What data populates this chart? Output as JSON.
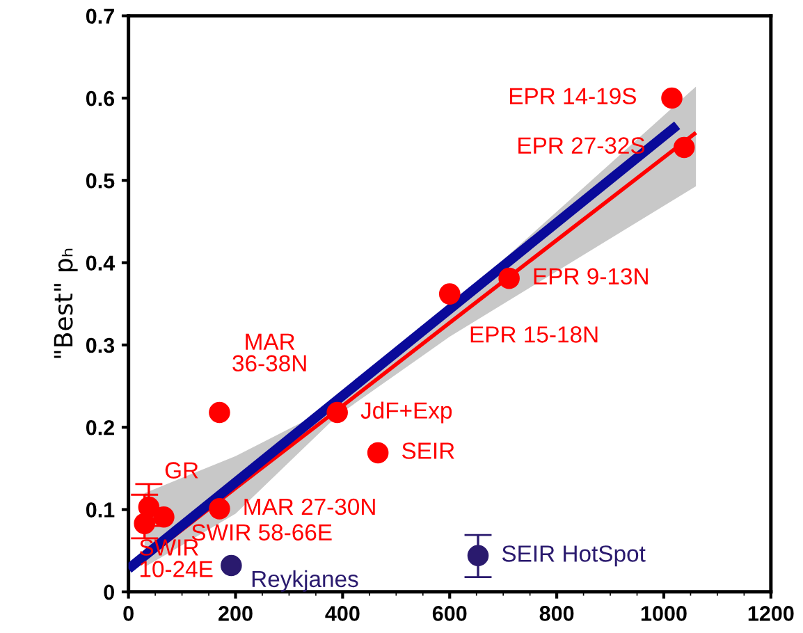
{
  "chart_data": {
    "type": "scatter",
    "ylabel": "\"Best\" pₕ",
    "xlim": [
      0,
      1200
    ],
    "xticks": [
      0,
      200,
      400,
      600,
      800,
      1000,
      1200
    ],
    "ylim": [
      0,
      0.7
    ],
    "yticks": [
      0,
      0.1,
      0.2,
      0.3,
      0.4,
      0.5,
      0.6,
      0.7
    ],
    "grid": false,
    "marker": "circle",
    "series": [
      {
        "type": "line",
        "marker": "none",
        "color": "#ff0000",
        "x": [
          30,
          200,
          390,
          600,
          1060
        ],
        "values": [
          0.04,
          0.126,
          0.221,
          0.327,
          0.558
        ],
        "lower": [
          0.03,
          0.095,
          0.214,
          0.31,
          0.493
        ],
        "upper": [
          0.12,
          0.165,
          0.228,
          0.345,
          0.614
        ]
      },
      {
        "type": "line",
        "marker": "none",
        "color": "#0a0a9a",
        "x": [
          0,
          1025
        ],
        "values": [
          0.028,
          0.567
        ]
      },
      {
        "color": "#ff0000",
        "x": [
          1015,
          1038,
          711,
          600,
          390,
          170,
          466,
          170,
          38,
          66,
          30
        ],
        "values": [
          0.6,
          0.54,
          0.381,
          0.362,
          0.218,
          0.218,
          0.169,
          0.101,
          0.103,
          0.091,
          0.083
        ],
        "errors": [
          null,
          null,
          null,
          null,
          null,
          null,
          null,
          null,
          [
            0.08,
            0.131
          ],
          null,
          [
            0.065,
            0.118
          ]
        ]
      },
      {
        "color": "#2a1a6e",
        "x": [
          192,
          653
        ],
        "values": [
          0.032,
          0.044
        ],
        "errors": [
          null,
          [
            0.018,
            0.069
          ]
        ]
      }
    ],
    "annotations": [
      {
        "text": "EPR 14-19S",
        "x": 1015,
        "y": 0.6
      },
      {
        "text": "EPR 27-32S",
        "x": 1038,
        "y": 0.54
      },
      {
        "text": "EPR 9-13N",
        "x": 711,
        "y": 0.381
      },
      {
        "text": "EPR 15-18N",
        "x": 600,
        "y": 0.362
      },
      {
        "text": "JdF+Exp",
        "x": 390,
        "y": 0.218
      },
      {
        "text": "MAR\n36-38N",
        "x": 170,
        "y": 0.218
      },
      {
        "text": "SEIR",
        "x": 466,
        "y": 0.169
      },
      {
        "text": "MAR 27-30N",
        "x": 170,
        "y": 0.101
      },
      {
        "text": "GR",
        "x": 38,
        "y": 0.103
      },
      {
        "text": "SWIR 58-66E",
        "x": 66,
        "y": 0.091
      },
      {
        "text": "SWIR\n10-24E",
        "x": 30,
        "y": 0.083
      },
      {
        "text": "Reykjanes",
        "x": 192,
        "y": 0.032
      },
      {
        "text": "SEIR HotSpot",
        "x": 653,
        "y": 0.044
      }
    ]
  }
}
